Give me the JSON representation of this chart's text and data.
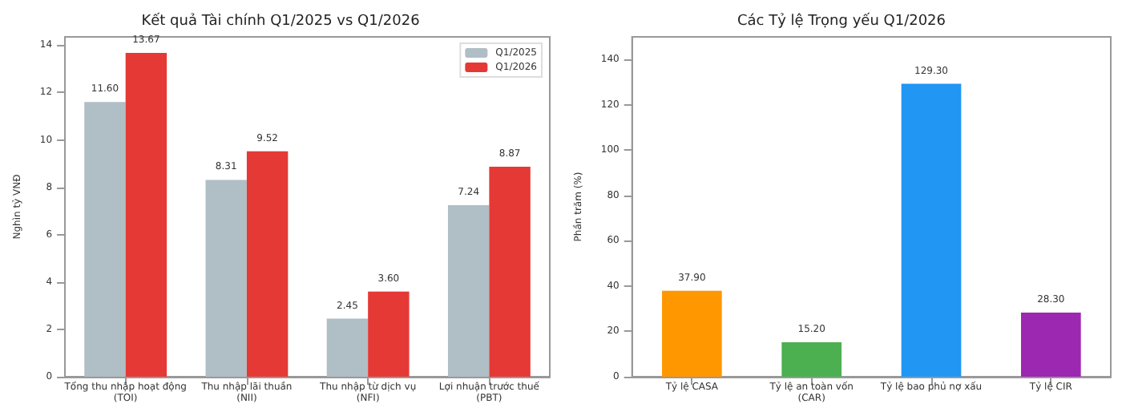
{
  "chart_data": [
    {
      "type": "bar",
      "title": "Kết quả Tài chính Q1/2025 vs Q1/2026",
      "ylabel": "Nghìn tỷ VNĐ",
      "categories": [
        "Tổng thu nhập hoạt động\n(TOI)",
        "Thu nhập lãi thuần\n(NII)",
        "Thu nhập từ dịch vụ\n(NFI)",
        "Lợi nhuận trước thuế\n(PBT)"
      ],
      "series": [
        {
          "name": "Q1/2025",
          "color": "#b0bec5",
          "values": [
            11.6,
            8.31,
            2.45,
            7.24
          ],
          "value_labels": [
            "11.60",
            "8.31",
            "2.45",
            "7.24"
          ]
        },
        {
          "name": "Q1/2026",
          "color": "#e53935",
          "values": [
            13.67,
            9.52,
            3.6,
            8.87
          ],
          "value_labels": [
            "13.67",
            "9.52",
            "3.60",
            "8.87"
          ]
        }
      ],
      "ylim": [
        0,
        14.35
      ],
      "yticks": [
        0,
        2,
        4,
        6,
        8,
        10,
        12,
        14
      ],
      "legend": "top right"
    },
    {
      "type": "bar",
      "title": "Các Tỷ lệ Trọng yếu Q1/2026",
      "ylabel": "Phần trăm (%)",
      "categories": [
        "Tỷ lệ CASA",
        "Tỷ lệ an toàn vốn\n(CAR)",
        "Tỷ lệ bao phủ nợ xấu",
        "Tỷ lệ CIR"
      ],
      "values": [
        37.9,
        15.2,
        129.3,
        28.3
      ],
      "value_labels": [
        "37.90",
        "15.20",
        "129.30",
        "28.30"
      ],
      "colors": [
        "#ff9800",
        "#4caf50",
        "#2196f3",
        "#9c27b0"
      ],
      "ylim": [
        0,
        150
      ],
      "yticks": [
        0,
        20,
        40,
        60,
        80,
        100,
        120,
        140
      ]
    }
  ]
}
